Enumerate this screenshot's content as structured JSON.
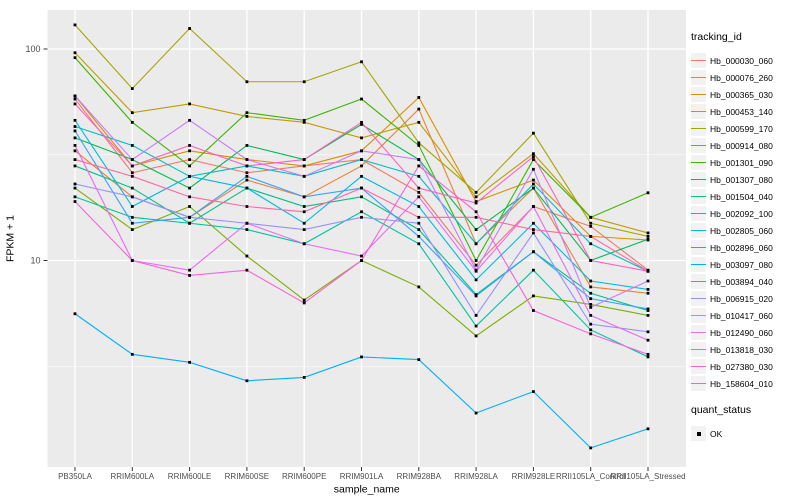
{
  "legend": {
    "tracking_title": "tracking_id",
    "quant_title": "quant_status",
    "quant_items": [
      {
        "label": "OK",
        "marker": "black-square-point"
      }
    ]
  },
  "chart_data": {
    "type": "line",
    "title": "",
    "xlabel": "sample_name",
    "ylabel": "FPKM + 1",
    "y_scale": "log10",
    "y_ticks": [
      100,
      10
    ],
    "y_minor_ticks": [
      31.62,
      3.162
    ],
    "ylim": [
      1.05,
      153
    ],
    "grid": true,
    "legend_position": "right",
    "panel_color": "#EBEBEB",
    "grid_color": "#FFFFFF",
    "point_color": "#000000",
    "axis_text_color": "#4D4D4D",
    "x_categories": [
      "PB350LA",
      "RRIM600LA",
      "RRIM600LE",
      "RRIM600SE",
      "RRIM600PE",
      "RRIM901LA",
      "RRIM928BA",
      "RRIM928LA",
      "RRIM928LE",
      "RRII105LA_Control",
      "RRII105LA_Stressed"
    ],
    "series": [
      {
        "name": "Hb_000030_060",
        "color": "#F8766D",
        "values": [
          58,
          26,
          30,
          26,
          28,
          30,
          21,
          9.5,
          18,
          14.5,
          9
        ]
      },
      {
        "name": "Hb_000076_260",
        "color": "#EA8331",
        "values": [
          33,
          20,
          16,
          24,
          20,
          28,
          52,
          12,
          22,
          7.5,
          7
        ]
      },
      {
        "name": "Hb_000365_030",
        "color": "#D89000",
        "values": [
          60,
          28,
          33,
          30,
          28,
          33,
          59,
          19,
          24,
          13,
          12.5
        ]
      },
      {
        "name": "Hb_000453_140",
        "color": "#C09B00",
        "values": [
          96,
          50,
          55,
          48,
          45,
          38,
          45,
          20,
          32,
          16,
          13.5
        ]
      },
      {
        "name": "Hb_000599_170",
        "color": "#A3A500",
        "values": [
          130,
          65,
          125,
          70,
          70,
          87,
          36,
          21,
          40,
          15,
          13
        ]
      },
      {
        "name": "Hb_000914_080",
        "color": "#7CAE00",
        "values": [
          22,
          14,
          18,
          10.5,
          6.5,
          10,
          7.5,
          4.4,
          6.8,
          6.2,
          5.5
        ]
      },
      {
        "name": "Hb_001301_090",
        "color": "#39B600",
        "values": [
          91,
          45,
          28,
          50,
          46,
          58,
          35,
          10,
          30,
          16,
          20.9
        ]
      },
      {
        "name": "Hb_001307_080",
        "color": "#00BB4E",
        "values": [
          38,
          30,
          22,
          35,
          30,
          44,
          30,
          14,
          22,
          10,
          12.6
        ]
      },
      {
        "name": "Hb_001504_040",
        "color": "#00C087",
        "values": [
          28,
          22,
          15,
          22,
          18,
          20,
          14,
          6.9,
          11,
          7,
          5.8
        ]
      },
      {
        "name": "Hb_002092_100",
        "color": "#00C1A3",
        "values": [
          20,
          16,
          15,
          14,
          12,
          17,
          12,
          4.9,
          9,
          4.7,
          3.5
        ]
      },
      {
        "name": "Hb_002805_060",
        "color": "#00BFC4",
        "values": [
          43,
          35,
          25,
          28,
          25,
          30,
          25,
          12,
          23,
          12,
          8.9
        ]
      },
      {
        "name": "Hb_002896_060",
        "color": "#00BAE0",
        "values": [
          46,
          18,
          25,
          22,
          15,
          25,
          18,
          8.1,
          15,
          8,
          7.3
        ]
      },
      {
        "name": "Hb_003097_080",
        "color": "#00B0F6",
        "values": [
          5.6,
          3.6,
          3.3,
          2.7,
          2.8,
          3.5,
          3.4,
          1.9,
          2.4,
          1.3,
          1.6
        ]
      },
      {
        "name": "Hb_003894_040",
        "color": "#35A2FF",
        "values": [
          41,
          15,
          16,
          25,
          20,
          22,
          13,
          6.8,
          11,
          6.6,
          5.9
        ]
      },
      {
        "name": "Hb_006915_020",
        "color": "#9590FF",
        "values": [
          23,
          20,
          16,
          15,
          14,
          16,
          15,
          5.5,
          13.5,
          5,
          4.6
        ]
      },
      {
        "name": "Hb_010417_060",
        "color": "#C77CFF",
        "values": [
          60,
          30,
          46,
          30,
          25,
          33,
          30,
          9,
          27,
          6,
          8
        ]
      },
      {
        "name": "Hb_012490_060",
        "color": "#E76BF3",
        "values": [
          35,
          10,
          9,
          15,
          12,
          10.5,
          20,
          8.9,
          18,
          5.5,
          4.2
        ]
      },
      {
        "name": "Hb_013818_030",
        "color": "#FA62DB",
        "values": [
          19,
          10,
          8.5,
          9,
          6.3,
          10,
          28,
          17,
          5.8,
          4.5,
          3.6
        ]
      },
      {
        "name": "Hb_027380_030",
        "color": "#FF61C3",
        "values": [
          55,
          28,
          35,
          28,
          30,
          45,
          22,
          18.7,
          31,
          10,
          8.9
        ]
      },
      {
        "name": "Hb_158604_010",
        "color": "#FF67A4",
        "values": [
          30,
          25,
          20,
          18,
          17,
          22,
          16,
          16,
          14,
          13,
          8.9
        ]
      }
    ]
  }
}
